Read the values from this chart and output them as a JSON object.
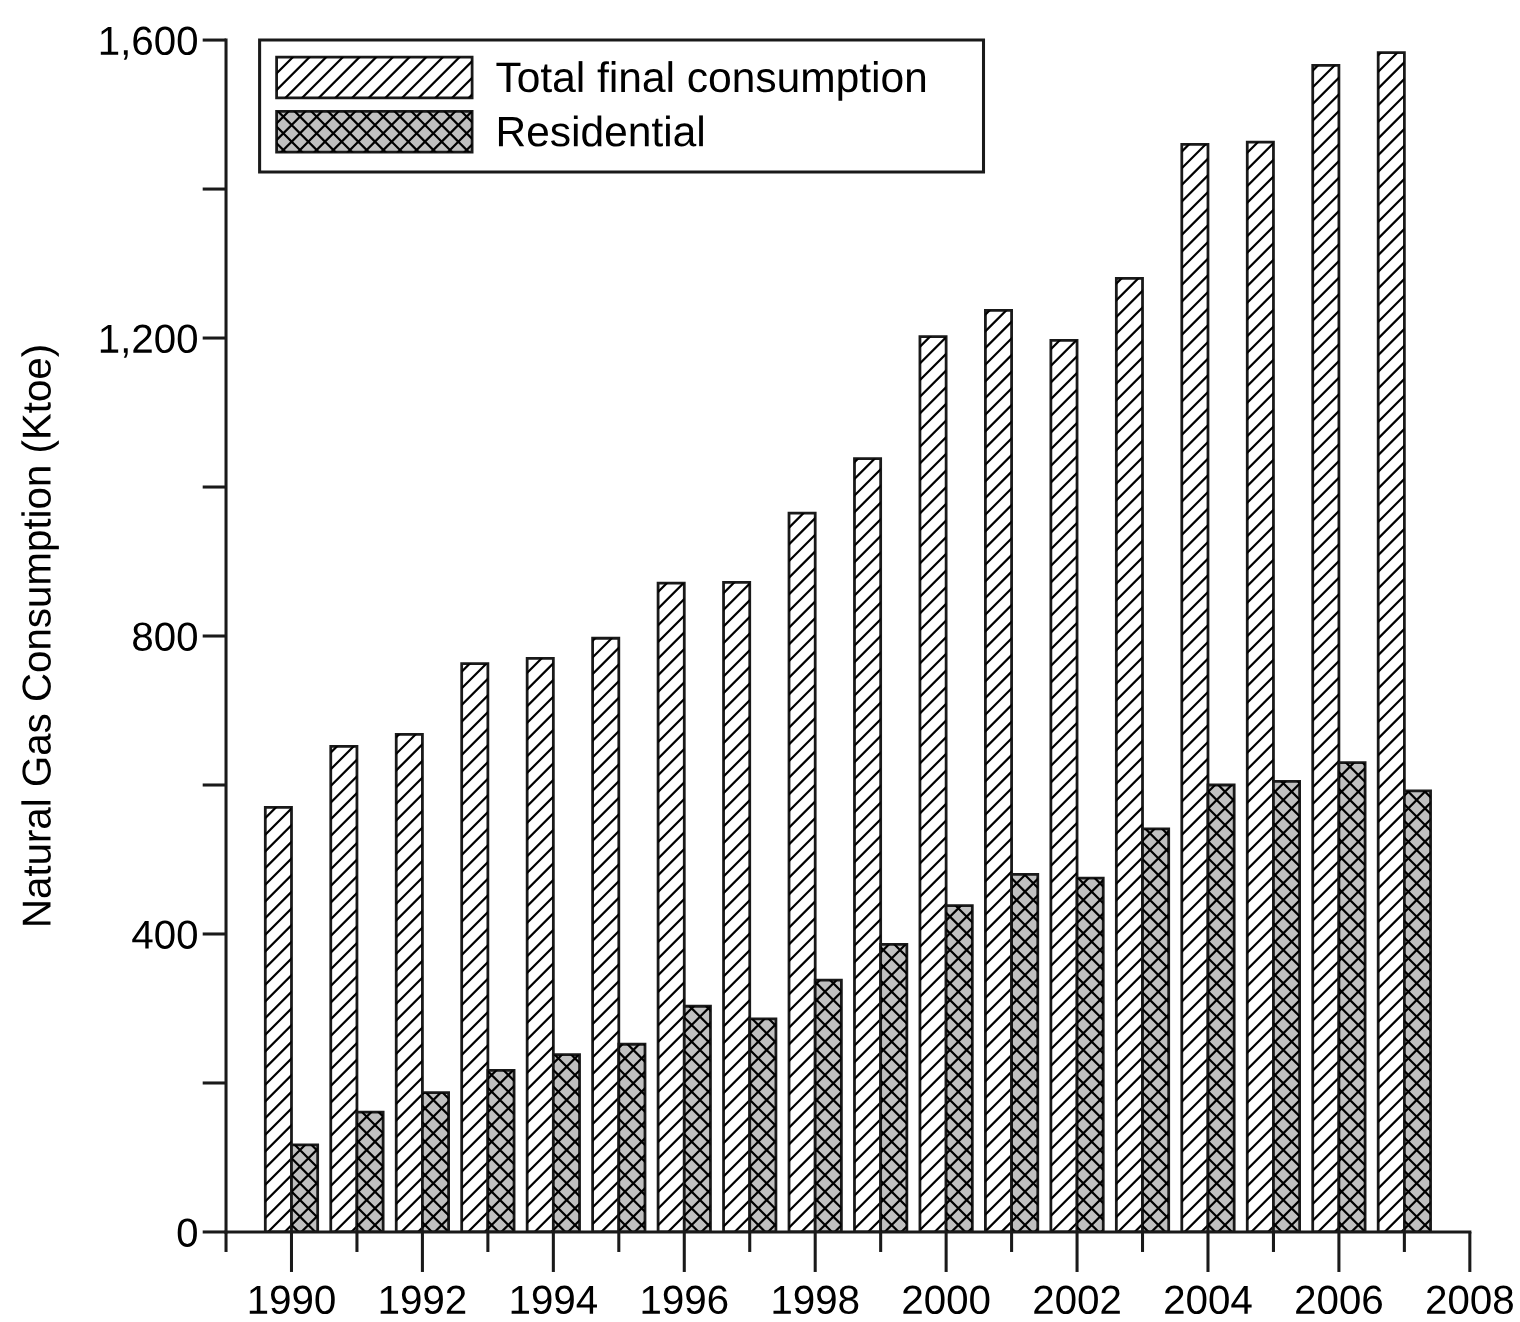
{
  "chart_data": {
    "type": "bar",
    "ylabel": "Natural Gas Consumption (Ktoe)",
    "x": [
      1990,
      1991,
      1992,
      1993,
      1994,
      1995,
      1996,
      1997,
      1998,
      1999,
      2000,
      2001,
      2002,
      2003,
      2004,
      2005,
      2006,
      2007
    ],
    "series": [
      {
        "name": "Total final consumption",
        "color": "#ffffff",
        "values": [
          570,
          652,
          668,
          763,
          770,
          797,
          871,
          872,
          965,
          1038,
          1202,
          1237,
          1197,
          1280,
          1460,
          1463,
          1566,
          1583
        ]
      },
      {
        "name": "Residential",
        "color": "#c0c0c0",
        "values": [
          117,
          161,
          187,
          217,
          238,
          252,
          303,
          286,
          338,
          386,
          438,
          480,
          475,
          541,
          600,
          605,
          630,
          592
        ]
      }
    ],
    "xlim": [
      1989,
      2008
    ],
    "xticks": [
      {
        "value": 1989,
        "label": null
      },
      1990,
      {
        "value": 1991,
        "label": null
      },
      1992,
      {
        "value": 1993,
        "label": null
      },
      1994,
      {
        "value": 1995,
        "label": null
      },
      1996,
      {
        "value": 1997,
        "label": null
      },
      1998,
      {
        "value": 1999,
        "label": null
      },
      2000,
      {
        "value": 2001,
        "label": null
      },
      2002,
      {
        "value": 2003,
        "label": null
      },
      2004,
      {
        "value": 2005,
        "label": null
      },
      2006,
      {
        "value": 2007,
        "label": null
      },
      2008
    ],
    "ylim": [
      0,
      1600
    ],
    "yticks": [
      0,
      {
        "value": 200,
        "label": null
      },
      400,
      {
        "value": 600,
        "label": null
      },
      800,
      {
        "value": 1000,
        "label": null
      },
      {
        "value": 1200,
        "label": "1,200"
      },
      {
        "value": 1400,
        "label": null
      },
      {
        "value": 1600,
        "label": "1,600"
      }
    ],
    "legend": "top left"
  }
}
